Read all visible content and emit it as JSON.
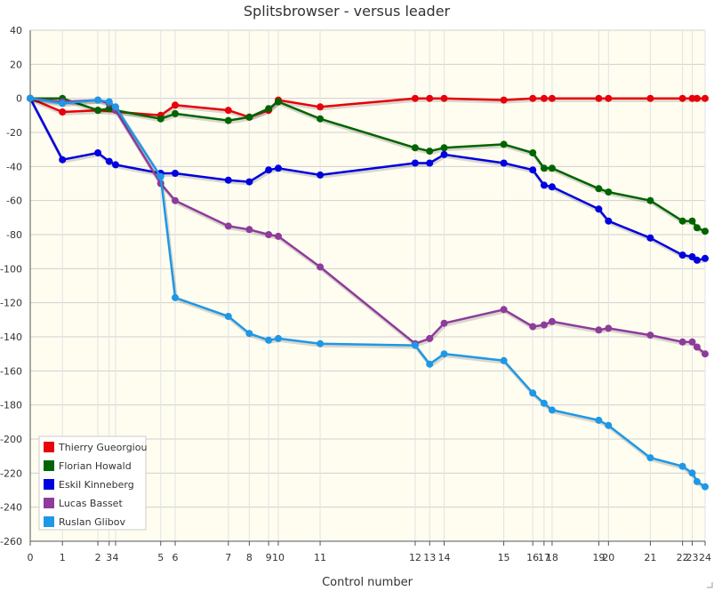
{
  "chart_data": {
    "type": "line",
    "title": "Splitsbrowser - versus leader",
    "xlabel": "Control number",
    "ylabel": "",
    "x_ticks": [
      {
        "pos": 0,
        "label": "0"
      },
      {
        "pos": 1,
        "label": "1"
      },
      {
        "pos": 2.1,
        "label": "2"
      },
      {
        "pos": 2.45,
        "label": "3"
      },
      {
        "pos": 2.65,
        "label": "4"
      },
      {
        "pos": 4.05,
        "label": "5"
      },
      {
        "pos": 4.5,
        "label": "6"
      },
      {
        "pos": 6.15,
        "label": "7"
      },
      {
        "pos": 6.8,
        "label": "8"
      },
      {
        "pos": 7.4,
        "label": "9"
      },
      {
        "pos": 7.7,
        "label": "10"
      },
      {
        "pos": 9.0,
        "label": "11"
      },
      {
        "pos": 11.95,
        "label": "12"
      },
      {
        "pos": 12.4,
        "label": "13"
      },
      {
        "pos": 12.85,
        "label": "14"
      },
      {
        "pos": 14.7,
        "label": "15"
      },
      {
        "pos": 15.6,
        "label": "16"
      },
      {
        "pos": 15.95,
        "label": "17"
      },
      {
        "pos": 16.2,
        "label": "18"
      },
      {
        "pos": 17.65,
        "label": "19"
      },
      {
        "pos": 17.95,
        "label": "20"
      },
      {
        "pos": 19.25,
        "label": "21"
      },
      {
        "pos": 20.25,
        "label": "22"
      },
      {
        "pos": 20.55,
        "label": "23"
      },
      {
        "pos": 20.95,
        "label": "24"
      }
    ],
    "xlim": [
      0,
      20.95
    ],
    "ylim": [
      -260,
      40
    ],
    "y_ticks": [
      40,
      20,
      0,
      -20,
      -40,
      -60,
      -80,
      -100,
      -120,
      -140,
      -160,
      -180,
      -200,
      -220,
      -240,
      -260
    ],
    "grid": true,
    "legend_position": "bottom-left",
    "series": [
      {
        "name": "Thierry Gueorgiou",
        "color": "#e8000b",
        "points": [
          [
            0,
            0
          ],
          [
            1,
            -8
          ],
          [
            2.1,
            -7
          ],
          [
            4.05,
            -10
          ],
          [
            4.5,
            -4
          ],
          [
            6.15,
            -7
          ],
          [
            6.8,
            -11
          ],
          [
            7.4,
            -7
          ],
          [
            7.7,
            -1
          ],
          [
            9.0,
            -5
          ],
          [
            11.95,
            0
          ],
          [
            12.4,
            0
          ],
          [
            12.85,
            0
          ],
          [
            14.7,
            -1
          ],
          [
            15.6,
            0
          ],
          [
            15.95,
            0
          ],
          [
            16.2,
            0
          ],
          [
            17.65,
            0
          ],
          [
            17.95,
            0
          ],
          [
            19.25,
            0
          ],
          [
            20.25,
            0
          ],
          [
            20.55,
            0
          ],
          [
            20.7,
            0
          ],
          [
            20.95,
            0
          ]
        ]
      },
      {
        "name": "Florian Howald",
        "color": "#006400",
        "points": [
          [
            0,
            0
          ],
          [
            1,
            0
          ],
          [
            2.1,
            -7
          ],
          [
            2.45,
            -6
          ],
          [
            2.65,
            -7
          ],
          [
            4.05,
            -12
          ],
          [
            4.5,
            -9
          ],
          [
            6.15,
            -13
          ],
          [
            6.8,
            -11
          ],
          [
            7.4,
            -6
          ],
          [
            7.7,
            -2
          ],
          [
            9.0,
            -12
          ],
          [
            11.95,
            -29
          ],
          [
            12.4,
            -31
          ],
          [
            12.85,
            -29
          ],
          [
            14.7,
            -27
          ],
          [
            15.6,
            -32
          ],
          [
            15.95,
            -41
          ],
          [
            16.2,
            -41
          ],
          [
            17.65,
            -53
          ],
          [
            17.95,
            -55
          ],
          [
            19.25,
            -60
          ],
          [
            20.25,
            -72
          ],
          [
            20.55,
            -72
          ],
          [
            20.7,
            -76
          ],
          [
            20.95,
            -78
          ]
        ]
      },
      {
        "name": "Eskil Kinneberg",
        "color": "#0000e0",
        "points": [
          [
            0,
            0
          ],
          [
            1,
            -36
          ],
          [
            2.1,
            -32
          ],
          [
            2.45,
            -37
          ],
          [
            2.65,
            -39
          ],
          [
            4.05,
            -44
          ],
          [
            4.5,
            -44
          ],
          [
            6.15,
            -48
          ],
          [
            6.8,
            -49
          ],
          [
            7.4,
            -42
          ],
          [
            7.7,
            -41
          ],
          [
            9.0,
            -45
          ],
          [
            11.95,
            -38
          ],
          [
            12.4,
            -38
          ],
          [
            12.85,
            -33
          ],
          [
            14.7,
            -38
          ],
          [
            15.6,
            -42
          ],
          [
            15.95,
            -51
          ],
          [
            16.2,
            -52
          ],
          [
            17.65,
            -65
          ],
          [
            17.95,
            -72
          ],
          [
            19.25,
            -82
          ],
          [
            20.25,
            -92
          ],
          [
            20.55,
            -93
          ],
          [
            20.7,
            -95
          ],
          [
            20.95,
            -94
          ]
        ]
      },
      {
        "name": "Lucas Basset",
        "color": "#8e3b9b",
        "points": [
          [
            0,
            0
          ],
          [
            1,
            -2
          ],
          [
            2.1,
            -1
          ],
          [
            2.45,
            -3
          ],
          [
            2.65,
            -7
          ],
          [
            4.05,
            -50
          ],
          [
            4.5,
            -60
          ],
          [
            6.15,
            -75
          ],
          [
            6.8,
            -77
          ],
          [
            7.4,
            -80
          ],
          [
            7.7,
            -81
          ],
          [
            9.0,
            -99
          ],
          [
            11.95,
            -144
          ],
          [
            12.4,
            -141
          ],
          [
            12.85,
            -132
          ],
          [
            14.7,
            -124
          ],
          [
            15.6,
            -134
          ],
          [
            15.95,
            -133
          ],
          [
            16.2,
            -131
          ],
          [
            17.65,
            -136
          ],
          [
            17.95,
            -135
          ],
          [
            19.25,
            -139
          ],
          [
            20.25,
            -143
          ],
          [
            20.55,
            -143
          ],
          [
            20.7,
            -146
          ],
          [
            20.95,
            -150
          ]
        ]
      },
      {
        "name": "Ruslan Glibov",
        "color": "#1e98e6",
        "points": [
          [
            0,
            0
          ],
          [
            1,
            -3
          ],
          [
            2.1,
            -1
          ],
          [
            2.45,
            -2
          ],
          [
            2.65,
            -5
          ],
          [
            4.05,
            -46
          ],
          [
            4.5,
            -117
          ],
          [
            6.15,
            -128
          ],
          [
            6.8,
            -138
          ],
          [
            7.4,
            -142
          ],
          [
            7.7,
            -141
          ],
          [
            9.0,
            -144
          ],
          [
            11.95,
            -145
          ],
          [
            12.4,
            -156
          ],
          [
            12.85,
            -150
          ],
          [
            14.7,
            -154
          ],
          [
            15.6,
            -173
          ],
          [
            15.95,
            -179
          ],
          [
            16.2,
            -183
          ],
          [
            17.65,
            -189
          ],
          [
            17.95,
            -192
          ],
          [
            19.25,
            -211
          ],
          [
            20.25,
            -216
          ],
          [
            20.55,
            -220
          ],
          [
            20.7,
            -225
          ],
          [
            20.95,
            -228
          ]
        ]
      }
    ]
  }
}
